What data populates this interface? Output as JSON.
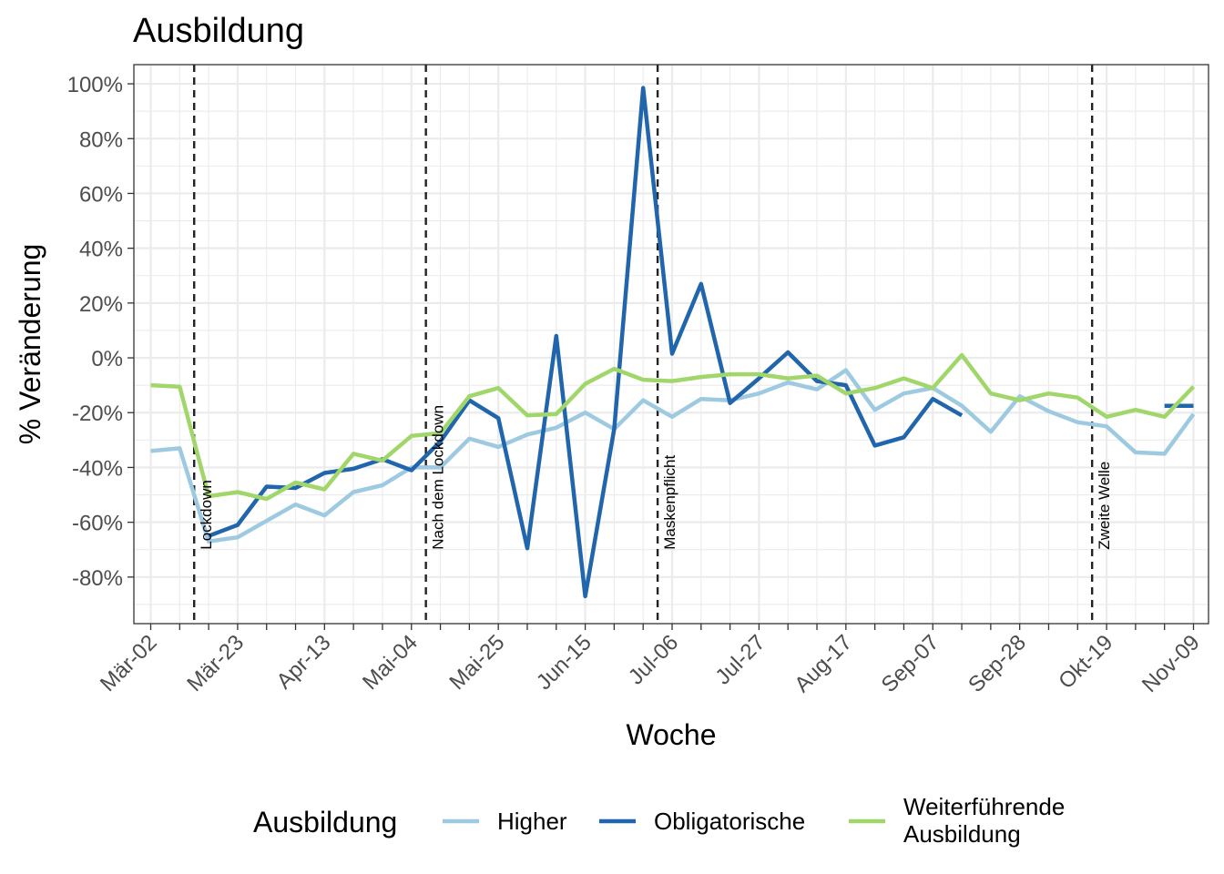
{
  "chart_data": {
    "type": "line",
    "title": "Ausbildung",
    "xlabel": "Woche",
    "ylabel": "% Veränderung",
    "ylim": [
      -97,
      107
    ],
    "yticks": [
      -80,
      -60,
      -40,
      -20,
      0,
      20,
      40,
      60,
      80,
      100
    ],
    "ytick_labels": [
      "-80%",
      "-60%",
      "-40%",
      "-20%",
      "0%",
      "20%",
      "40%",
      "60%",
      "80%",
      "100%"
    ],
    "x": [
      "Mär-02",
      "Mär-09",
      "Mär-16",
      "Mär-23",
      "Mär-30",
      "Apr-06",
      "Apr-13",
      "Apr-20",
      "Apr-27",
      "Mai-04",
      "Mai-11",
      "Mai-18",
      "Mai-25",
      "Jun-01",
      "Jun-08",
      "Jun-15",
      "Jun-22",
      "Jun-29",
      "Jul-06",
      "Jul-13",
      "Jul-20",
      "Jul-27",
      "Aug-03",
      "Aug-10",
      "Aug-17",
      "Aug-24",
      "Aug-31",
      "Sep-07",
      "Sep-14",
      "Sep-21",
      "Sep-28",
      "Okt-05",
      "Okt-12",
      "Okt-19",
      "Okt-26",
      "Nov-02",
      "Nov-09"
    ],
    "xtick_labels": [
      "Mär-02",
      "Mär-23",
      "Apr-13",
      "Mai-04",
      "Mai-25",
      "Jun-15",
      "Jul-06",
      "Jul-27",
      "Aug-17",
      "Sep-07",
      "Sep-28",
      "Okt-19",
      "Nov-09"
    ],
    "legend_title": "Ausbildung",
    "legend_position": "bottom",
    "grid": true,
    "series": [
      {
        "name": "Higher",
        "color": "#9ECAE1",
        "values": [
          -34,
          -33,
          -67,
          -65.5,
          -59.5,
          -53.5,
          -57.5,
          -49,
          -46.5,
          -40,
          -40,
          -29.5,
          -32.5,
          -28,
          -25.5,
          -20,
          -26,
          -15.5,
          -21.5,
          -15,
          -15.5,
          -13,
          -9,
          -11.5,
          -4.5,
          -19,
          -13,
          -11,
          -17.5,
          -27,
          -14,
          -19.5,
          -23.5,
          -25,
          -34.5,
          -35,
          -20.5
        ]
      },
      {
        "name": "Obligatorische",
        "color": "#2166AC",
        "values": [
          null,
          null,
          -65,
          -61,
          -47,
          -47.5,
          -42,
          -40.5,
          -37,
          -41,
          -30.5,
          -15.5,
          -22,
          -69.5,
          8,
          -87,
          -26,
          98.5,
          1.5,
          27,
          -16.5,
          -7.5,
          2,
          -8.5,
          -10,
          -32,
          -29,
          -15,
          -21,
          null,
          null,
          null,
          null,
          null,
          null,
          -17.5,
          -17.5
        ]
      },
      {
        "name": "Weiterführende Ausbildung",
        "legend_lines": [
          "Weiterführende",
          "Ausbildung"
        ],
        "color": "#A1D76A",
        "values": [
          -10,
          -10.5,
          -50.5,
          -49,
          -51.5,
          -45.5,
          -48,
          -35,
          -37.5,
          -28.5,
          -27.5,
          -14,
          -11,
          -21,
          -20.5,
          -9.5,
          -4,
          -8,
          -8.5,
          -7,
          -6,
          -6,
          -7.5,
          -6.5,
          -13,
          -11,
          -7.5,
          -11,
          1,
          -13,
          -15.5,
          -13,
          -14.5,
          -21.5,
          -19,
          -21.5,
          -10.5
        ]
      }
    ],
    "annotations": [
      {
        "label": "Lockdown",
        "x": 1.5
      },
      {
        "label": "Nach dem Lockdown",
        "x": 9.5
      },
      {
        "label": "Maskenpflicht",
        "x": 17.5
      },
      {
        "label": "Zweite Welle",
        "x": 32.5
      }
    ]
  }
}
